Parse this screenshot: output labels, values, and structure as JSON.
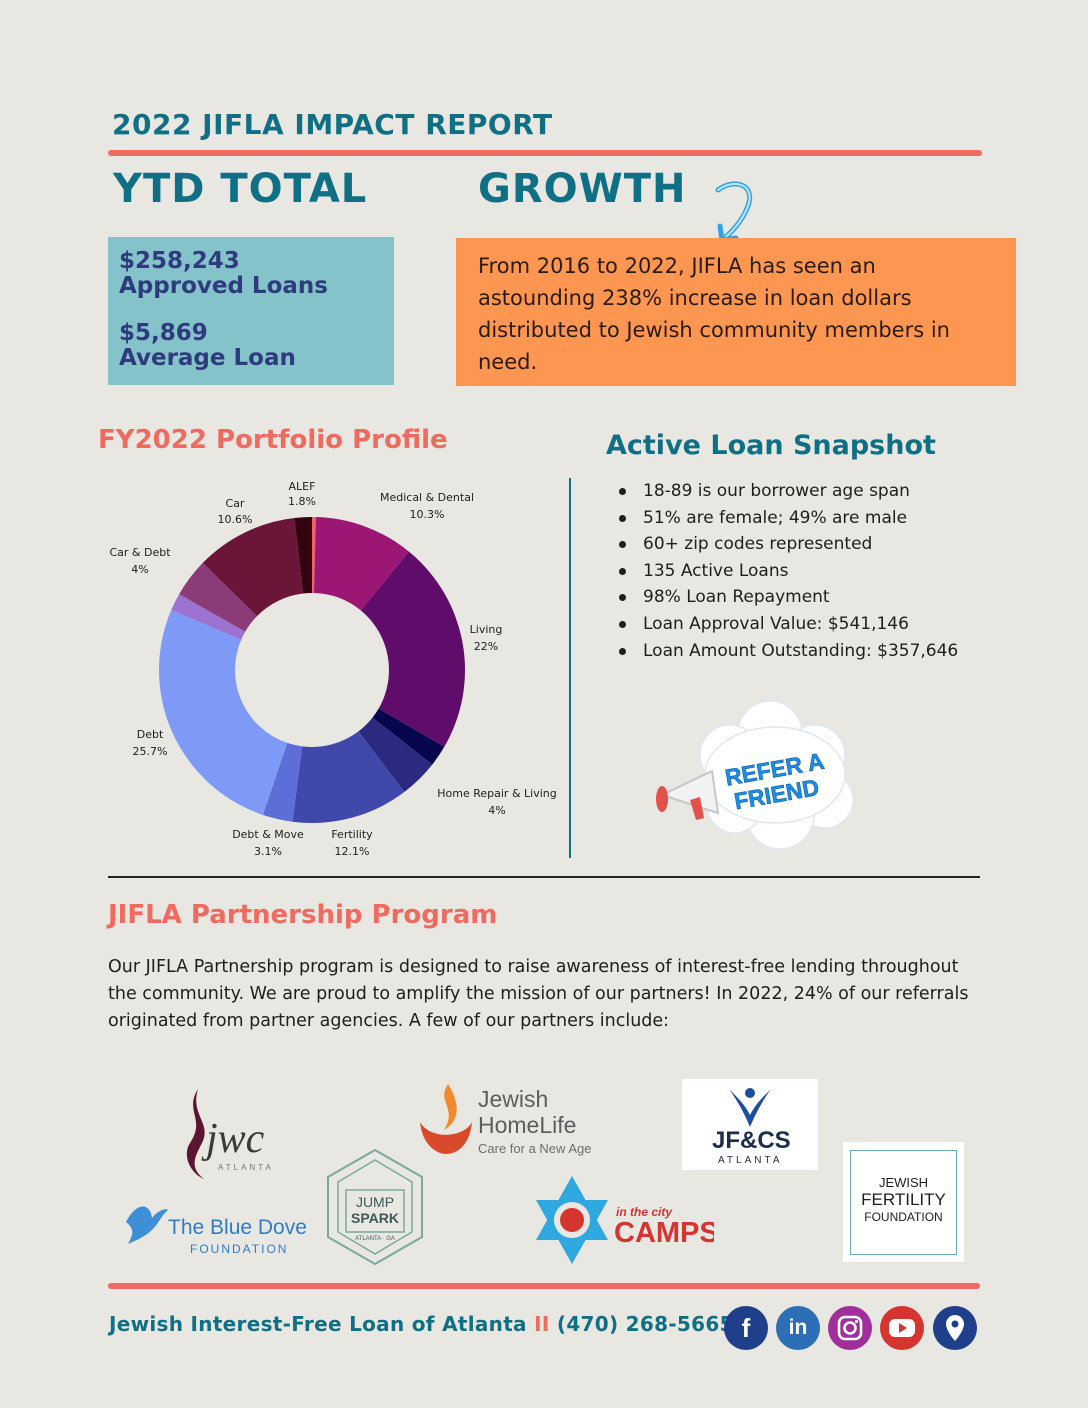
{
  "header": {
    "report_title": "2022 JIFLA IMPACT REPORT",
    "ytd_heading": "YTD TOTAL",
    "growth_heading": "GROWTH"
  },
  "ytd": {
    "approved_amount": "$258,243",
    "approved_label": "Approved Loans",
    "average_amount": "$5,869",
    "average_label": "Average Loan"
  },
  "growth": {
    "text": "From 2016 to 2022, JIFLA has seen an astounding 238% increase in loan dollars distributed to Jewish community members in need."
  },
  "portfolio": {
    "heading": "FY2022 Portfolio Profile"
  },
  "snapshot": {
    "heading": "Active Loan Snapshot",
    "items": [
      "18-89 is our borrower age span",
      "51% are female; 49% are male",
      "60+ zip codes represented",
      "135 Active Loans",
      "98% Loan Repayment",
      "Loan Approval Value: $541,146",
      "Loan Amount Outstanding: $357,646"
    ]
  },
  "refer": {
    "line1": "REFER A",
    "line2": "FRIEND"
  },
  "partnership": {
    "heading": "JIFLA Partnership Program",
    "text": "Our JIFLA Partnership program is designed to raise awareness of interest-free lending throughout the community. We are proud to amplify the mission of our partners!  In 2022, 24% of our referrals originated from partner agencies. A few of our partners include:"
  },
  "partners": {
    "jwc": {
      "name": "jwc",
      "sub": "ATLANTA"
    },
    "homelife": {
      "line1": "Jewish",
      "line2": "HomeLife",
      "tagline": "Care for a New Age"
    },
    "jfcs": {
      "name": "JF&CS",
      "sub": "ATLANTA"
    },
    "fertility": {
      "line1": "JEWISH",
      "line2": "FERTILITY",
      "line3": "FOUNDATION"
    },
    "bluedove": {
      "line1": "The Blue Dove",
      "line2": "FOUNDATION"
    },
    "jumpspark": {
      "line1": "JUMP",
      "line2": "SPARK",
      "sub": "ATLANTA · GA"
    },
    "camps": {
      "line1": "in the city",
      "line2": "CAMPS"
    }
  },
  "footer": {
    "org": "Jewish Interest-Free Loan of Atlanta",
    "separator": "II",
    "phone": "(470) 268-5665"
  },
  "social_icons": [
    "facebook-icon",
    "linkedin-icon",
    "instagram-icon",
    "youtube-icon",
    "location-icon"
  ],
  "colors": {
    "teal": "#0f6f84",
    "coral": "#ef6a5f",
    "orange_box": "#fd9650",
    "teal_box": "#84c3c9"
  },
  "chart_data": {
    "type": "pie",
    "subtype": "donut",
    "title": "FY2022 Portfolio Profile",
    "slices": [
      {
        "label": "",
        "value": 0.4,
        "color": "#f2616a"
      },
      {
        "label": "Medical & Dental",
        "value": 10.3,
        "color": "#9c1673"
      },
      {
        "label": "Living",
        "value": 22,
        "color": "#600c6b"
      },
      {
        "label": "",
        "value": 2.2,
        "color": "#06064f"
      },
      {
        "label": "Home Repair & Living",
        "value": 4,
        "color": "#2a2a80"
      },
      {
        "label": "Fertility",
        "value": 12.1,
        "color": "#4148ac"
      },
      {
        "label": "Debt & Move",
        "value": 3.1,
        "color": "#5d6ed8"
      },
      {
        "label": "Debt",
        "value": 25.7,
        "color": "#7f9af6"
      },
      {
        "label": "",
        "value": 1.8,
        "color": "#9d73d2"
      },
      {
        "label": "Car & Debt",
        "value": 4,
        "color": "#8b3c78"
      },
      {
        "label": "Car",
        "value": 10.6,
        "color": "#6b1539"
      },
      {
        "label": "ALEF",
        "value": 1.8,
        "color": "#330410"
      }
    ],
    "labels": [
      {
        "name": "ALEF",
        "pct": "1.8%"
      },
      {
        "name": "Car",
        "pct": "10.6%"
      },
      {
        "name": "Car & Debt",
        "pct": "4%"
      },
      {
        "name": "Medical & Dental",
        "pct": "10.3%"
      },
      {
        "name": "Living",
        "pct": "22%"
      },
      {
        "name": "Debt",
        "pct": "25.7%"
      },
      {
        "name": "Home Repair & Living",
        "pct": "4%"
      },
      {
        "name": "Debt & Move",
        "pct": "3.1%"
      },
      {
        "name": "Fertility",
        "pct": "12.1%"
      }
    ]
  }
}
